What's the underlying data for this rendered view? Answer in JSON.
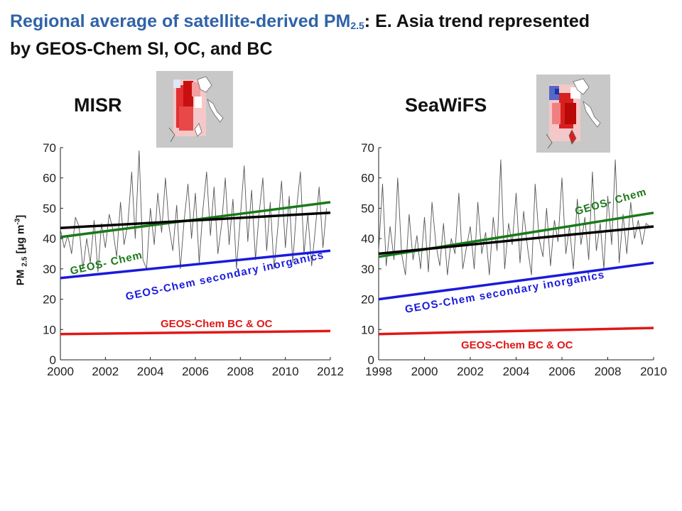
{
  "slide": {
    "title_main": "Regional average of satellite-derived PM",
    "title_sub": "2.5",
    "title_rest": ": E. Asia trend represented",
    "title_line2": "by GEOS-Chem SI, OC, and BC"
  },
  "y_axis": {
    "label_main": "PM ",
    "label_sub": "2.5",
    "label_mid": " [μg m",
    "label_sup": "-3",
    "label_end": "]"
  },
  "colors": {
    "title": "#2f63a8",
    "observed": "#555555",
    "trend_obs": "#000000",
    "geos_chem": "#1a7a1a",
    "inorganics": "#1a1adc",
    "bc_oc": "#e01818"
  },
  "chart_data": [
    {
      "type": "line",
      "panel": "MISR",
      "title": "MISR",
      "xlim": [
        2000,
        2012
      ],
      "ylim": [
        0,
        70
      ],
      "xticks": [
        2000,
        2002,
        2004,
        2006,
        2008,
        2010,
        2012
      ],
      "yticks": [
        0,
        10,
        20,
        30,
        40,
        50,
        60,
        70
      ],
      "series": [
        {
          "role": "observed",
          "x": [
            2000.0,
            2000.17,
            2000.33,
            2000.5,
            2000.67,
            2000.83,
            2001.0,
            2001.17,
            2001.33,
            2001.5,
            2001.67,
            2001.83,
            2002.0,
            2002.17,
            2002.33,
            2002.5,
            2002.67,
            2002.83,
            2003.0,
            2003.17,
            2003.33,
            2003.5,
            2003.67,
            2003.83,
            2004.0,
            2004.17,
            2004.33,
            2004.5,
            2004.67,
            2004.83,
            2005.0,
            2005.17,
            2005.33,
            2005.5,
            2005.67,
            2005.83,
            2006.0,
            2006.17,
            2006.33,
            2006.5,
            2006.67,
            2006.83,
            2007.0,
            2007.17,
            2007.33,
            2007.5,
            2007.67,
            2007.83,
            2008.0,
            2008.17,
            2008.33,
            2008.5,
            2008.67,
            2008.83,
            2009.0,
            2009.17,
            2009.33,
            2009.5,
            2009.67,
            2009.83,
            2010.0,
            2010.17,
            2010.33,
            2010.5,
            2010.67,
            2010.83,
            2011.0,
            2011.17,
            2011.33,
            2011.5,
            2011.67,
            2011.83
          ],
          "values": [
            43,
            37,
            41,
            35,
            47,
            44,
            30,
            40,
            32,
            46,
            29,
            45,
            37,
            48,
            43,
            34,
            52,
            38,
            45,
            62,
            40,
            69,
            33,
            30,
            50,
            38,
            55,
            42,
            60,
            44,
            36,
            51,
            30,
            46,
            58,
            40,
            55,
            32,
            49,
            62,
            41,
            57,
            35,
            45,
            60,
            38,
            53,
            30,
            47,
            64,
            39,
            56,
            33,
            48,
            60,
            36,
            52,
            30,
            44,
            59,
            37,
            54,
            32,
            50,
            62,
            35,
            48,
            31,
            43,
            57,
            37,
            50
          ]
        },
        {
          "role": "observed-trend",
          "x": [
            2000,
            2012
          ],
          "values": [
            43.5,
            48.5
          ]
        },
        {
          "role": "geos-chem-trend",
          "name": "GEOS- Chem",
          "x": [
            2000,
            2012
          ],
          "values": [
            40.5,
            52
          ]
        },
        {
          "role": "inorganics-trend",
          "name": "GEOS-Chem secondary inorganics",
          "x": [
            2000,
            2012
          ],
          "values": [
            27,
            36
          ]
        },
        {
          "role": "bcoc-trend",
          "name": "GEOS-Chem BC & OC",
          "x": [
            2000,
            2012
          ],
          "values": [
            8.5,
            9.5
          ]
        }
      ]
    },
    {
      "type": "line",
      "panel": "SeaWiFS",
      "title": "SeaWiFS",
      "xlim": [
        1998,
        2010
      ],
      "ylim": [
        0,
        70
      ],
      "xticks": [
        1998,
        2000,
        2002,
        2004,
        2006,
        2008,
        2010
      ],
      "yticks": [
        0,
        10,
        20,
        30,
        40,
        50,
        60,
        70
      ],
      "series": [
        {
          "role": "observed",
          "x": [
            1998.0,
            1998.17,
            1998.33,
            1998.5,
            1998.67,
            1998.83,
            1999.0,
            1999.17,
            1999.33,
            1999.5,
            1999.67,
            1999.83,
            2000.0,
            2000.17,
            2000.33,
            2000.5,
            2000.67,
            2000.83,
            2001.0,
            2001.17,
            2001.33,
            2001.5,
            2001.67,
            2001.83,
            2002.0,
            2002.17,
            2002.33,
            2002.5,
            2002.67,
            2002.83,
            2003.0,
            2003.17,
            2003.33,
            2003.5,
            2003.67,
            2003.83,
            2004.0,
            2004.17,
            2004.33,
            2004.5,
            2004.67,
            2004.83,
            2005.0,
            2005.17,
            2005.33,
            2005.5,
            2005.67,
            2005.83,
            2006.0,
            2006.17,
            2006.33,
            2006.5,
            2006.67,
            2006.83,
            2007.0,
            2007.17,
            2007.33,
            2007.5,
            2007.67,
            2007.83,
            2008.0,
            2008.17,
            2008.33,
            2008.5,
            2008.67,
            2008.83,
            2009.0,
            2009.17,
            2009.33,
            2009.5,
            2009.67,
            2009.83
          ],
          "values": [
            36,
            58,
            31,
            44,
            33,
            60,
            35,
            28,
            48,
            33,
            41,
            30,
            47,
            29,
            52,
            38,
            31,
            45,
            28,
            40,
            35,
            55,
            30,
            37,
            44,
            30,
            52,
            35,
            42,
            28,
            47,
            36,
            66,
            30,
            45,
            38,
            55,
            32,
            49,
            37,
            28,
            58,
            40,
            34,
            50,
            31,
            46,
            39,
            60,
            35,
            44,
            30,
            53,
            38,
            47,
            33,
            62,
            36,
            45,
            30,
            54,
            38,
            66,
            32,
            48,
            35,
            52,
            40,
            46,
            38,
            45,
            44
          ]
        },
        {
          "role": "observed-trend",
          "x": [
            1998,
            2010
          ],
          "values": [
            35,
            44
          ]
        },
        {
          "role": "geos-chem-trend",
          "name": "GEOS- Chem",
          "x": [
            1998,
            2010
          ],
          "values": [
            34,
            48.5
          ]
        },
        {
          "role": "inorganics-trend",
          "name": "GEOS-Chem secondary inorganics",
          "x": [
            1998,
            2010
          ],
          "values": [
            20,
            32
          ]
        },
        {
          "role": "bcoc-trend",
          "name": "GEOS-Chem BC & OC",
          "x": [
            1998,
            2010
          ],
          "values": [
            8.5,
            10.5
          ]
        }
      ]
    }
  ]
}
